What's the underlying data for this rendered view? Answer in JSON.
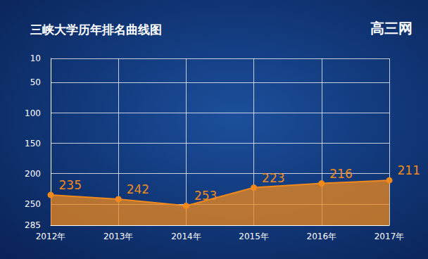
{
  "chart_data": {
    "type": "area",
    "title": "三峡大学历年排名曲线图",
    "annotations": [
      "高三网"
    ],
    "categories": [
      "2012年",
      "2013年",
      "2014年",
      "2015年",
      "2016年",
      "2017年"
    ],
    "values": [
      235,
      242,
      253,
      223,
      216,
      211
    ],
    "color": "#f08a1c",
    "marker": "circle",
    "line_style": "solid",
    "ylim": [
      10,
      285
    ],
    "yticks": [
      10,
      50,
      100,
      150,
      200,
      250,
      285
    ],
    "grid": true,
    "data_labels": true
  }
}
